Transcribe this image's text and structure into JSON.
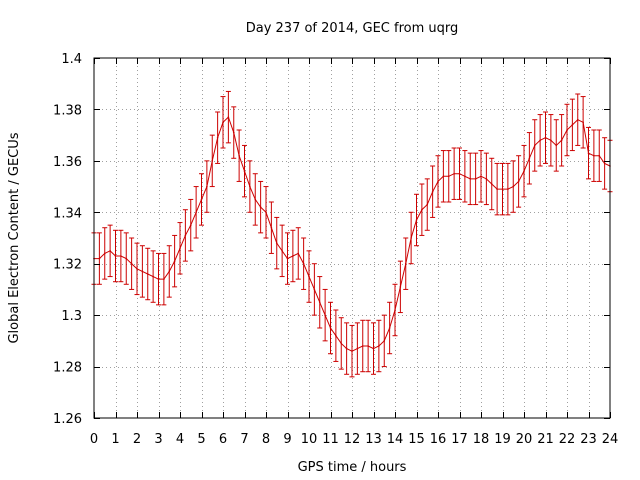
{
  "chart_data": {
    "type": "line",
    "title": "Day 237 of 2014, GEC from uqrg",
    "xlabel": "GPS time / hours",
    "ylabel": "Global Electron Content / GECUs",
    "xlim": [
      0,
      24
    ],
    "ylim": [
      1.26,
      1.4
    ],
    "x_ticks": [
      "0",
      "1",
      "2",
      "3",
      "4",
      "5",
      "6",
      "7",
      "8",
      "9",
      "10",
      "11",
      "12",
      "13",
      "14",
      "15",
      "16",
      "17",
      "18",
      "19",
      "20",
      "21",
      "22",
      "23",
      "24"
    ],
    "y_ticks": [
      "1.26",
      "1.28",
      "1.3",
      "1.32",
      "1.34",
      "1.36",
      "1.38",
      "1.4"
    ],
    "y_tick_values": [
      1.26,
      1.28,
      1.3,
      1.32,
      1.34,
      1.36,
      1.38,
      1.4
    ],
    "grid": true,
    "line_color": "#cc0000",
    "error_bar": 0.01,
    "series": [
      {
        "x": [
          0,
          0.25,
          0.5,
          0.75,
          1,
          1.25,
          1.5,
          1.75,
          2,
          2.25,
          2.5,
          2.75,
          3,
          3.25,
          3.5,
          3.75,
          4,
          4.25,
          4.5,
          4.75,
          5,
          5.25,
          5.5,
          5.75,
          6,
          6.25,
          6.5,
          6.75,
          7,
          7.25,
          7.5,
          7.75,
          8,
          8.25,
          8.5,
          8.75,
          9,
          9.25,
          9.5,
          9.75,
          10,
          10.25,
          10.5,
          10.75,
          11,
          11.25,
          11.5,
          11.75,
          12,
          12.25,
          12.5,
          12.75,
          13,
          13.25,
          13.5,
          13.75,
          14,
          14.25,
          14.5,
          14.75,
          15,
          15.25,
          15.5,
          15.75,
          16,
          16.25,
          16.5,
          16.75,
          17,
          17.25,
          17.5,
          17.75,
          18,
          18.25,
          18.5,
          18.75,
          19,
          19.25,
          19.5,
          19.75,
          20,
          20.25,
          20.5,
          20.75,
          21,
          21.25,
          21.5,
          21.75,
          22,
          22.25,
          22.5,
          22.75,
          23,
          23.25,
          23.5,
          23.75,
          24
        ],
        "y": [
          1.322,
          1.322,
          1.324,
          1.325,
          1.323,
          1.323,
          1.322,
          1.32,
          1.318,
          1.317,
          1.316,
          1.315,
          1.314,
          1.314,
          1.317,
          1.321,
          1.326,
          1.331,
          1.335,
          1.34,
          1.345,
          1.35,
          1.36,
          1.369,
          1.375,
          1.377,
          1.371,
          1.362,
          1.356,
          1.35,
          1.345,
          1.342,
          1.34,
          1.334,
          1.328,
          1.325,
          1.322,
          1.323,
          1.324,
          1.32,
          1.315,
          1.31,
          1.305,
          1.3,
          1.295,
          1.292,
          1.289,
          1.287,
          1.286,
          1.287,
          1.288,
          1.288,
          1.287,
          1.288,
          1.29,
          1.295,
          1.302,
          1.311,
          1.32,
          1.33,
          1.337,
          1.341,
          1.343,
          1.348,
          1.352,
          1.354,
          1.354,
          1.355,
          1.355,
          1.354,
          1.353,
          1.353,
          1.354,
          1.353,
          1.351,
          1.349,
          1.349,
          1.349,
          1.35,
          1.352,
          1.356,
          1.361,
          1.366,
          1.368,
          1.369,
          1.368,
          1.366,
          1.368,
          1.372,
          1.374,
          1.376,
          1.375,
          1.363,
          1.362,
          1.362,
          1.359,
          1.358
        ]
      }
    ]
  }
}
